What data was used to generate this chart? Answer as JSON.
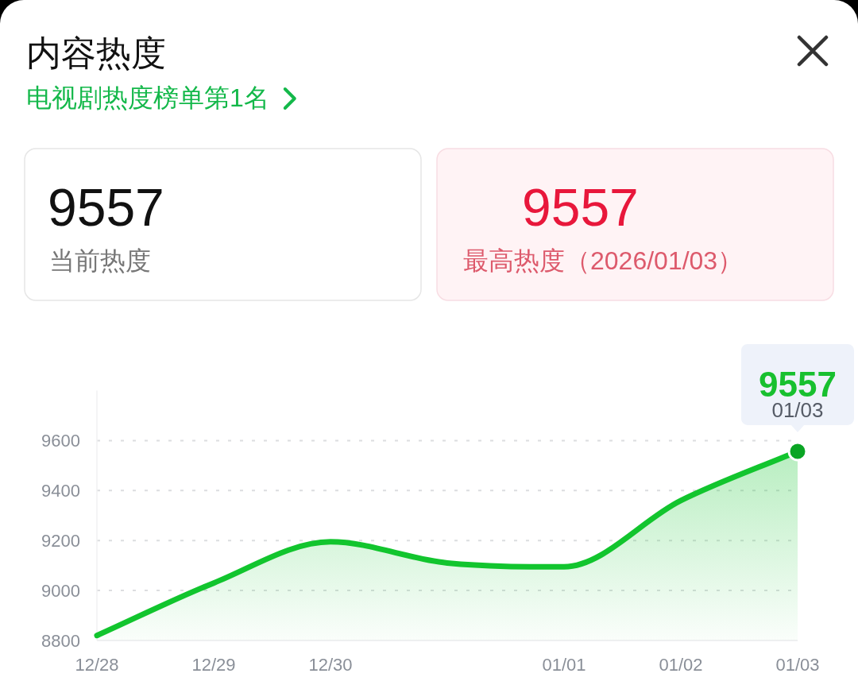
{
  "chart_data": [
    {
      "type": "other",
      "title": "内容热度",
      "subtitle": "电视剧热度榜单第1名",
      "annotations": [
        "9557",
        "当前热度",
        "9557",
        "最高热度（2026/01/03）"
      ]
    },
    {
      "type": "area",
      "categories": [
        "12/28",
        "12/29",
        "12/30",
        null,
        "01/01",
        "01/02",
        "01/03"
      ],
      "series": [
        {
          "type": "area",
          "color": "#12c52e",
          "values": [
            8820,
            9030,
            9195,
            9110,
            9095,
            9360,
            9557
          ]
        },
        {
          "type": "scatter",
          "color": "#0aa524",
          "values": [
            null,
            null,
            null,
            null,
            null,
            null,
            9557
          ],
          "value_labels": [
            null,
            null,
            null,
            null,
            null,
            null,
            "9557"
          ]
        }
      ],
      "ylim": [
        8800,
        9800
      ],
      "yticks": [
        8800,
        9000,
        9200,
        9400,
        9600
      ],
      "grid": "y",
      "annotations": [
        {
          "text": "01/03",
          "x": "01/03",
          "y": 9557
        }
      ]
    }
  ]
}
